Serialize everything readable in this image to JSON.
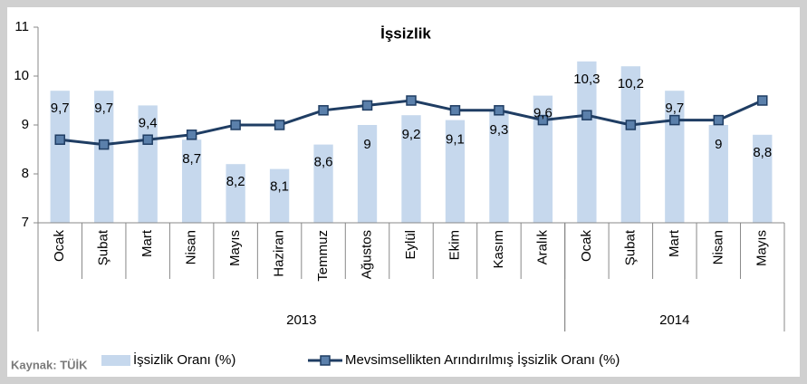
{
  "chart_data": {
    "type": "bar-line",
    "title": "İşsizlik",
    "source": "Kaynak: TÜİK",
    "categories": [
      "Ocak",
      "Şubat",
      "Mart",
      "Nisan",
      "Mayıs",
      "Haziran",
      "Temmuz",
      "Ağustos",
      "Eylül",
      "Ekim",
      "Kasım",
      "Aralık",
      "Ocak",
      "Şubat",
      "Mart",
      "Nisan",
      "Mayıs"
    ],
    "years": [
      "2013",
      "2014"
    ],
    "ylim": [
      7,
      11
    ],
    "yticks": [
      7,
      8,
      9,
      10,
      11
    ],
    "series": [
      {
        "name": "İşsizlik Oranı (%)",
        "kind": "bar",
        "color": "#c6d8ed",
        "values": [
          9.7,
          9.7,
          9.4,
          8.7,
          8.2,
          8.1,
          8.6,
          9,
          9.2,
          9.1,
          9.3,
          9.6,
          10.3,
          10.2,
          9.7,
          9,
          8.8
        ],
        "value_labels": [
          "9,7",
          "9,7",
          "9,4",
          "8,7",
          "8,2",
          "8,1",
          "8,6",
          "9",
          "9,2",
          "9,1",
          "9,3",
          "9,6",
          "10,3",
          "10,2",
          "9,7",
          "9",
          "8,8"
        ]
      },
      {
        "name": "Mevsimsellikten Arındırılmış İşsizlik Oranı (%)",
        "kind": "line",
        "color": "#1f3d63",
        "marker_color": "#5b80ab",
        "values": [
          8.7,
          8.6,
          8.7,
          8.8,
          9.0,
          9.0,
          9.3,
          9.4,
          9.5,
          9.3,
          9.3,
          9.1,
          9.2,
          9.0,
          9.1,
          9.1,
          9.5
        ]
      }
    ]
  }
}
